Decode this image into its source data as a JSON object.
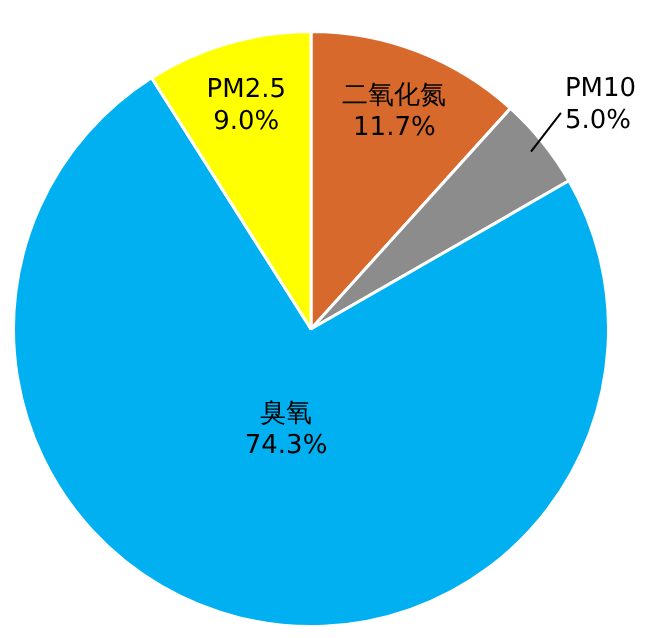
{
  "chart_data": {
    "type": "pie",
    "categories": [
      "二氧化氮",
      "PM10",
      "臭氧",
      "PM2.5"
    ],
    "values": [
      11.7,
      5.0,
      74.3,
      9.0
    ],
    "colors": [
      "#d8692c",
      "#8c8c8c",
      "#00b0f0",
      "#ffff00"
    ],
    "value_labels": [
      "11.7%",
      "5.0%",
      "74.3%",
      "9.0%"
    ],
    "legend": false
  }
}
